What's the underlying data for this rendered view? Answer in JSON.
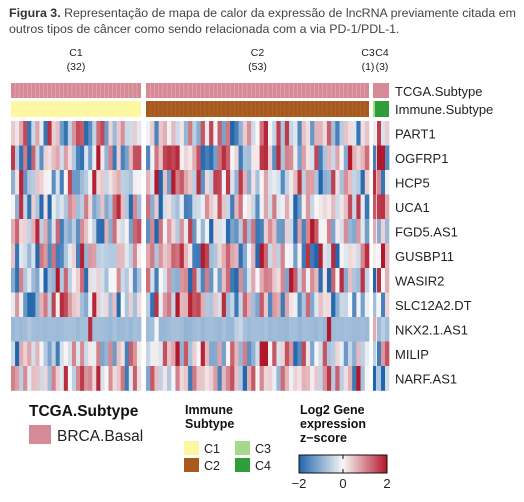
{
  "caption": {
    "prefix": "Figura 3.",
    "text": "Representação de mapa de calor da expressão de lncRNA previamente citada em outros tipos de câncer como sendo relacionada com a via PD-1/PDL-1."
  },
  "chart_data": {
    "type": "heatmap",
    "column_groups": [
      {
        "label": "C1",
        "count_label": "(32)",
        "n": 32
      },
      {
        "label": "C2",
        "count_label": "(53)",
        "n": 53
      },
      {
        "label": "C3",
        "count_label": "(1)",
        "n": 1
      },
      {
        "label": "C4",
        "count_label": "(3)",
        "n": 3
      }
    ],
    "annotation_rows": [
      {
        "name": "TCGA.Subtype",
        "values": [
          "BRCA.Basal",
          "BRCA.Basal",
          "BRCA.Basal",
          "BRCA.Basal"
        ]
      },
      {
        "name": "Immune.Subtype",
        "values": [
          "C1",
          "C2",
          "C3",
          "C4"
        ]
      }
    ],
    "genes": [
      "PART1",
      "OGFRP1",
      "HCP5",
      "UCA1",
      "FGD5.AS1",
      "GUSBP11",
      "WASIR2",
      "SLC12A2.DT",
      "NKX2.1.AS1",
      "MILIP",
      "NARF.AS1"
    ],
    "value_range": [
      -2,
      2
    ],
    "colorbar_ticks": [
      -2,
      0,
      2
    ],
    "colors": {
      "low": "#2166ac",
      "mid": "#f7f7f7",
      "high": "#b2182b",
      "brca_basal": "#d68a95",
      "C1": "#fdf8a0",
      "C2": "#a85a1e",
      "C3": "#a6d98a",
      "C4": "#2e9e3a"
    }
  },
  "legend": {
    "tcga_title": "TCGA.Subtype",
    "tcga_item": "BRCA.Basal",
    "immune_title_line1": "Immune",
    "immune_title_line2": "Subtype",
    "immune_items": [
      "C1",
      "C2",
      "C3",
      "C4"
    ],
    "expr_title_line1": "Log2 Gene",
    "expr_title_line2": "expression",
    "expr_title_line3": "z−score",
    "tick_labels": [
      "−2",
      "0",
      "2"
    ]
  }
}
